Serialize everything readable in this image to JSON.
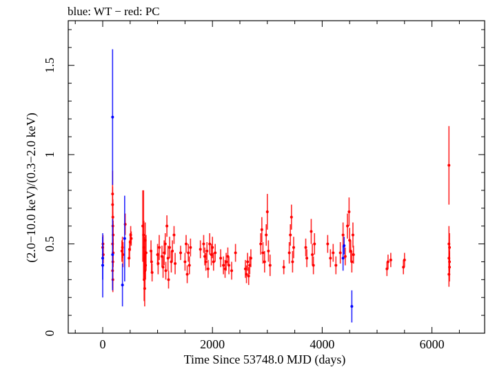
{
  "chart_data": {
    "type": "scatter",
    "title": "blue: WT − red: PC",
    "xlabel": "Time Since 53748.0 MJD (days)",
    "ylabel": "(2.0−10.0 keV)/(0.3−2.0 keV)",
    "xlim": [
      -628,
      6960
    ],
    "ylim": [
      0,
      1.75
    ],
    "xticks": [
      0,
      2000,
      4000,
      6000
    ],
    "xtick_labels": [
      "0",
      "2000",
      "4000",
      "6000"
    ],
    "yticks": [
      0,
      0.5,
      1,
      1.5
    ],
    "ytick_labels": [
      "0",
      "0.5",
      "1",
      "1.5"
    ],
    "grid": false,
    "series": [
      {
        "name": "WT",
        "color": "#0000ff",
        "points": [
          [
            0,
            0.38,
            0.18
          ],
          [
            0,
            0.42,
            0.12
          ],
          [
            180,
            1.21,
            0.38
          ],
          [
            180,
            0.44,
            0.2
          ],
          [
            360,
            0.27,
            0.12
          ],
          [
            400,
            0.53,
            0.24
          ],
          [
            4380,
            0.42,
            0.07
          ],
          [
            4400,
            0.49,
            0.05
          ],
          [
            4540,
            0.15,
            0.09
          ]
        ]
      },
      {
        "name": "PC",
        "color": "#ff0000",
        "points": [
          [
            0,
            0.48,
            0.06
          ],
          [
            5,
            0.5,
            0.05
          ],
          [
            10,
            0.44,
            0.05
          ],
          [
            180,
            0.78,
            0.13
          ],
          [
            180,
            0.72,
            0.1
          ],
          [
            185,
            0.65,
            0.1
          ],
          [
            185,
            0.6,
            0.08
          ],
          [
            190,
            0.55,
            0.08
          ],
          [
            180,
            0.5,
            0.09
          ],
          [
            190,
            0.45,
            0.08
          ],
          [
            185,
            0.4,
            0.1
          ],
          [
            180,
            0.35,
            0.1
          ],
          [
            185,
            0.3,
            0.07
          ],
          [
            350,
            0.46,
            0.06
          ],
          [
            360,
            0.48,
            0.06
          ],
          [
            370,
            0.44,
            0.07
          ],
          [
            410,
            0.61,
            0.06
          ],
          [
            500,
            0.51,
            0.05
          ],
          [
            510,
            0.55,
            0.05
          ],
          [
            520,
            0.53,
            0.04
          ],
          [
            480,
            0.42,
            0.05
          ],
          [
            490,
            0.47,
            0.05
          ],
          [
            730,
            0.6,
            0.2
          ],
          [
            745,
            0.55,
            0.25
          ],
          [
            750,
            0.48,
            0.15
          ],
          [
            760,
            0.42,
            0.12
          ],
          [
            770,
            0.35,
            0.1
          ],
          [
            755,
            0.3,
            0.12
          ],
          [
            765,
            0.25,
            0.1
          ],
          [
            775,
            0.52,
            0.1
          ],
          [
            780,
            0.38,
            0.08
          ],
          [
            790,
            0.45,
            0.1
          ],
          [
            880,
            0.46,
            0.06
          ],
          [
            890,
            0.4,
            0.06
          ],
          [
            900,
            0.34,
            0.05
          ],
          [
            1000,
            0.44,
            0.06
          ],
          [
            1010,
            0.39,
            0.06
          ],
          [
            1030,
            0.48,
            0.07
          ],
          [
            1080,
            0.43,
            0.06
          ],
          [
            1100,
            0.37,
            0.06
          ],
          [
            1120,
            0.45,
            0.07
          ],
          [
            1140,
            0.5,
            0.06
          ],
          [
            1150,
            0.35,
            0.05
          ],
          [
            1170,
            0.6,
            0.06
          ],
          [
            1190,
            0.42,
            0.07
          ],
          [
            1200,
            0.3,
            0.05
          ],
          [
            1220,
            0.48,
            0.06
          ],
          [
            1250,
            0.4,
            0.06
          ],
          [
            1270,
            0.46,
            0.06
          ],
          [
            1300,
            0.55,
            0.05
          ],
          [
            1320,
            0.39,
            0.06
          ],
          [
            1420,
            0.45,
            0.04
          ],
          [
            1500,
            0.4,
            0.05
          ],
          [
            1520,
            0.5,
            0.05
          ],
          [
            1540,
            0.33,
            0.05
          ],
          [
            1560,
            0.45,
            0.05
          ],
          [
            1580,
            0.38,
            0.05
          ],
          [
            1600,
            0.48,
            0.05
          ],
          [
            1780,
            0.47,
            0.05
          ],
          [
            1840,
            0.5,
            0.05
          ],
          [
            1860,
            0.43,
            0.05
          ],
          [
            1880,
            0.4,
            0.05
          ],
          [
            1900,
            0.46,
            0.05
          ],
          [
            1920,
            0.36,
            0.05
          ],
          [
            1950,
            0.5,
            0.06
          ],
          [
            1980,
            0.44,
            0.06
          ],
          [
            2000,
            0.48,
            0.06
          ],
          [
            2020,
            0.4,
            0.05
          ],
          [
            2050,
            0.45,
            0.05
          ],
          [
            2150,
            0.42,
            0.05
          ],
          [
            2200,
            0.38,
            0.05
          ],
          [
            2230,
            0.36,
            0.05
          ],
          [
            2250,
            0.4,
            0.05
          ],
          [
            2280,
            0.43,
            0.05
          ],
          [
            2300,
            0.38,
            0.05
          ],
          [
            2350,
            0.35,
            0.05
          ],
          [
            2420,
            0.45,
            0.05
          ],
          [
            2600,
            0.36,
            0.05
          ],
          [
            2620,
            0.33,
            0.05
          ],
          [
            2640,
            0.4,
            0.05
          ],
          [
            2660,
            0.32,
            0.05
          ],
          [
            2680,
            0.38,
            0.05
          ],
          [
            2700,
            0.42,
            0.05
          ],
          [
            2880,
            0.5,
            0.06
          ],
          [
            2900,
            0.58,
            0.07
          ],
          [
            2920,
            0.45,
            0.06
          ],
          [
            2950,
            0.4,
            0.06
          ],
          [
            2980,
            0.55,
            0.06
          ],
          [
            3000,
            0.68,
            0.1
          ],
          [
            3020,
            0.46,
            0.06
          ],
          [
            3050,
            0.38,
            0.06
          ],
          [
            3300,
            0.37,
            0.04
          ],
          [
            3400,
            0.45,
            0.06
          ],
          [
            3420,
            0.55,
            0.06
          ],
          [
            3440,
            0.65,
            0.07
          ],
          [
            3460,
            0.4,
            0.06
          ],
          [
            3480,
            0.48,
            0.06
          ],
          [
            3700,
            0.48,
            0.05
          ],
          [
            3720,
            0.42,
            0.05
          ],
          [
            3800,
            0.57,
            0.07
          ],
          [
            3820,
            0.44,
            0.06
          ],
          [
            3840,
            0.38,
            0.05
          ],
          [
            3860,
            0.5,
            0.06
          ],
          [
            4100,
            0.5,
            0.05
          ],
          [
            4150,
            0.42,
            0.05
          ],
          [
            4200,
            0.45,
            0.05
          ],
          [
            4250,
            0.38,
            0.05
          ],
          [
            4330,
            0.45,
            0.06
          ],
          [
            4380,
            0.55,
            0.07
          ],
          [
            4420,
            0.43,
            0.05
          ],
          [
            4460,
            0.6,
            0.07
          ],
          [
            4490,
            0.68,
            0.08
          ],
          [
            4500,
            0.52,
            0.07
          ],
          [
            4520,
            0.46,
            0.06
          ],
          [
            4540,
            0.4,
            0.06
          ],
          [
            4560,
            0.55,
            0.07
          ],
          [
            4570,
            0.44,
            0.05
          ],
          [
            5180,
            0.36,
            0.04
          ],
          [
            5200,
            0.4,
            0.04
          ],
          [
            5250,
            0.41,
            0.04
          ],
          [
            5480,
            0.37,
            0.04
          ],
          [
            5500,
            0.41,
            0.04
          ],
          [
            6310,
            0.94,
            0.22
          ],
          [
            6310,
            0.5,
            0.1
          ],
          [
            6320,
            0.48,
            0.08
          ],
          [
            6310,
            0.42,
            0.07
          ],
          [
            6320,
            0.37,
            0.08
          ],
          [
            6310,
            0.33,
            0.07
          ],
          [
            6320,
            0.4,
            0.06
          ]
        ]
      }
    ]
  }
}
